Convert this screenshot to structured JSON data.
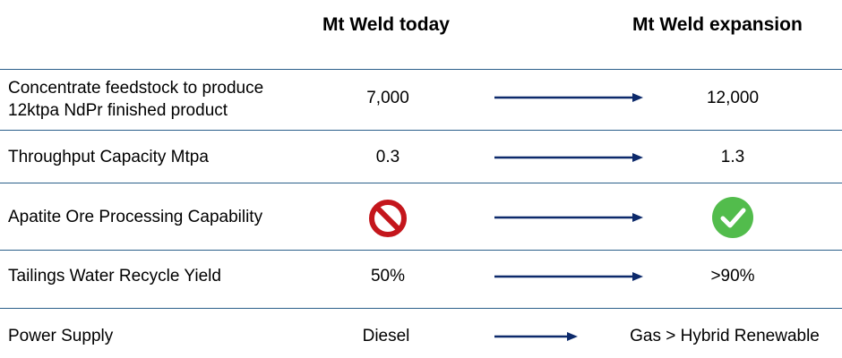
{
  "header": {
    "col_today": "Mt Weld today",
    "col_expansion": "Mt Weld expansion"
  },
  "rows": [
    {
      "label_line1": "Concentrate feedstock to produce",
      "label_line2": "12ktpa NdPr finished product",
      "today": "7,000",
      "expansion": "12,000"
    },
    {
      "label": "Throughput Capacity Mtpa",
      "today": "0.3",
      "expansion": "1.3"
    },
    {
      "label": "Apatite Ore Processing Capability",
      "today_icon": "prohibited-icon",
      "expansion_icon": "check-circle-icon"
    },
    {
      "label": "Tailings Water Recycle Yield",
      "today": "50%",
      "expansion": ">90%"
    },
    {
      "label": "Power Supply",
      "today": "Diesel",
      "expansion": "Gas > Hybrid Renewable"
    }
  ],
  "colors": {
    "arrow": "#0d2a6b",
    "separator": "#2b5f8a",
    "prohibited": "#c4161c",
    "check": "#52bc4c"
  }
}
